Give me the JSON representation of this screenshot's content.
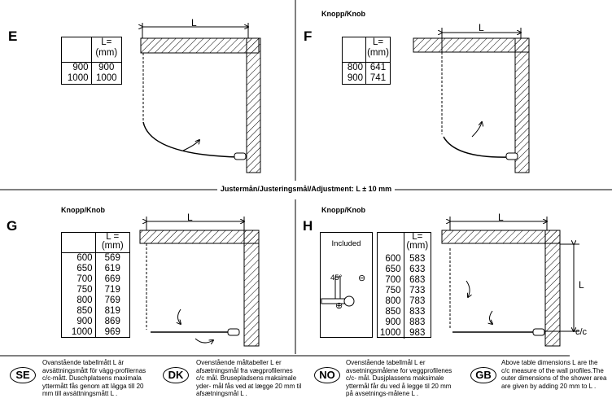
{
  "adjustment_title": "Justermån/Justeringsmål/Adjustment: L ± 10 mm",
  "dimension_label": "L",
  "cc_label": "c/c",
  "panels": {
    "E": {
      "letter": "E",
      "table": {
        "header": [
          "",
          "L=\n(mm)"
        ],
        "rows": [
          [
            "900",
            "900"
          ],
          [
            "1000",
            "1000"
          ]
        ]
      }
    },
    "F": {
      "letter": "F",
      "knob_label": "Knopp/Knob",
      "table": {
        "header": [
          "",
          "L=\n(mm)"
        ],
        "rows": [
          [
            "800",
            "641"
          ],
          [
            "900",
            "741"
          ]
        ]
      }
    },
    "G": {
      "letter": "G",
      "knob_label": "Knopp/Knob",
      "table": {
        "header": [
          "",
          "L =\n(mm)"
        ],
        "rows": [
          [
            "600",
            "569"
          ],
          [
            "650",
            "619"
          ],
          [
            "700",
            "669"
          ],
          [
            "750",
            "719"
          ],
          [
            "800",
            "769"
          ],
          [
            "850",
            "819"
          ],
          [
            "900",
            "869"
          ],
          [
            "1000",
            "969"
          ]
        ]
      }
    },
    "H": {
      "letter": "H",
      "knob_label": "Knopp/Knob",
      "included_label": "Included",
      "angle_label": "45°",
      "table": {
        "header": [
          "",
          "L=\n(mm)"
        ],
        "rows": [
          [
            "600",
            "583"
          ],
          [
            "650",
            "633"
          ],
          [
            "700",
            "683"
          ],
          [
            "750",
            "733"
          ],
          [
            "800",
            "783"
          ],
          [
            "850",
            "833"
          ],
          [
            "900",
            "883"
          ],
          [
            "1000",
            "983"
          ]
        ]
      }
    }
  },
  "notes": [
    {
      "badge": "SE",
      "text": "Ovanstående tabellmått L är avsättningsmått för vägg-profilernas c/c-mått. Duschplatsens maximala yttermått fås genom att lägga till 20 mm till avsättningsmått L ."
    },
    {
      "badge": "DK",
      "text": "Ovenstående måltabeller L er afsætningsmål fra vægprofilernes c/c mål. Brusepladsens maksimale yder- mål fås ved at lægge 20 mm til afsætningsmål L ."
    },
    {
      "badge": "NO",
      "text": "Ovenstående tabellmål L er avsetningsmålene for veggprofilenes c/c- mål. Dusjplassens maksimale yttermål får du ved å legge til 20 mm på avsetnings-målene L ."
    },
    {
      "badge": "GB",
      "text": "Above table dimensions L are the c/c measure of the wall profiles.The outer dimensions of the shower area are given by adding 20 mm to L ."
    }
  ]
}
